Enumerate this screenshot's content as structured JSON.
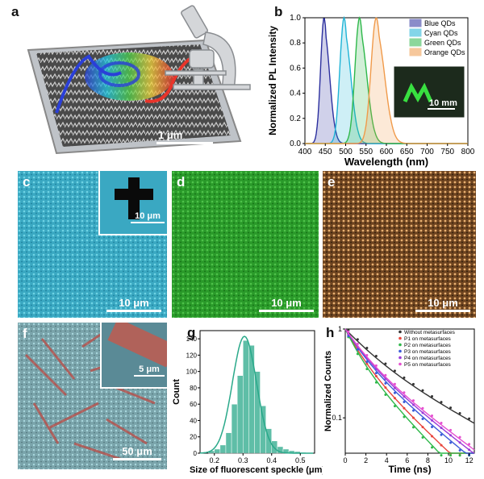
{
  "figure": {
    "panel_a": {
      "label": "a",
      "scale": "1 μm"
    },
    "panel_b": {
      "label": "b",
      "inset_scale": "10 mm"
    },
    "panel_c": {
      "label": "c",
      "scale": "10 μm",
      "inset_scale": "10 μm"
    },
    "panel_d": {
      "label": "d",
      "scale": "10 μm"
    },
    "panel_e": {
      "label": "e",
      "scale": "10 μm"
    },
    "panel_f": {
      "label": "f",
      "scale": "50 μm",
      "inset_scale": "5 μm"
    },
    "panel_g": {
      "label": "g"
    },
    "panel_h": {
      "label": "h"
    }
  },
  "chart_data": [
    {
      "panel": "b",
      "type": "line",
      "xlabel": "Wavelength (nm)",
      "ylabel": "Normalized PL Intensity",
      "xlim": [
        400,
        800
      ],
      "ylim": [
        0,
        1.0
      ],
      "xticks": [
        400,
        450,
        500,
        550,
        600,
        650,
        700,
        750,
        800
      ],
      "yticks": [
        0.0,
        0.2,
        0.4,
        0.6,
        0.8,
        1.0
      ],
      "legend_position": "top-right",
      "series": [
        {
          "name": "Blue QDs",
          "peak": 447,
          "fwhm": 20,
          "color": "#2b2f9e"
        },
        {
          "name": "Cyan QDs",
          "peak": 496,
          "fwhm": 24,
          "color": "#1fb4d6"
        },
        {
          "name": "Green QDs",
          "peak": 534,
          "fwhm": 26,
          "color": "#2eb84a"
        },
        {
          "name": "Orange QDs",
          "peak": 575,
          "fwhm": 30,
          "color": "#f09a4a"
        }
      ]
    },
    {
      "panel": "g",
      "type": "bar",
      "xlabel": "Size of fluorescent speckle (μm)",
      "ylabel": "Count",
      "xlim": [
        0.15,
        0.55
      ],
      "ylim": [
        0,
        150
      ],
      "xticks": [
        0.2,
        0.3,
        0.4,
        0.5
      ],
      "yticks": [
        0,
        20,
        40,
        60,
        80,
        100,
        120,
        140
      ],
      "bin_centers": [
        0.19,
        0.21,
        0.23,
        0.25,
        0.27,
        0.29,
        0.31,
        0.33,
        0.35,
        0.37,
        0.39,
        0.41,
        0.43,
        0.45,
        0.47,
        0.49,
        0.51
      ],
      "values": [
        3,
        5,
        10,
        25,
        60,
        95,
        138,
        132,
        100,
        58,
        30,
        15,
        8,
        5,
        3,
        2,
        1
      ],
      "fit": "Gaussian",
      "color": "#2aa98a"
    },
    {
      "panel": "h",
      "type": "scatter",
      "xlabel": "Time (ns)",
      "ylabel": "Normalized Counts",
      "xlim": [
        0,
        12.5
      ],
      "ylim": [
        0.04,
        1
      ],
      "yscale": "log",
      "xticks": [
        0,
        2,
        4,
        6,
        8,
        10,
        12
      ],
      "yticks": [
        0.1,
        1
      ],
      "legend_position": "top-right",
      "series": [
        {
          "name": "Without metasurfaces",
          "tau": 7.0,
          "color": "#333333"
        },
        {
          "name": "P1 on metasurfaces",
          "tau": 4.0,
          "color": "#e8453c"
        },
        {
          "name": "P2 on metasurfaces",
          "tau": 3.6,
          "color": "#2fb84a"
        },
        {
          "name": "P3 on metasurfaces",
          "tau": 4.6,
          "color": "#3b5bd8"
        },
        {
          "name": "P4 on metasurfaces",
          "tau": 4.9,
          "color": "#9b3bd8"
        },
        {
          "name": "P5 on metasurfaces",
          "tau": 5.1,
          "color": "#e54fd0"
        }
      ]
    }
  ]
}
